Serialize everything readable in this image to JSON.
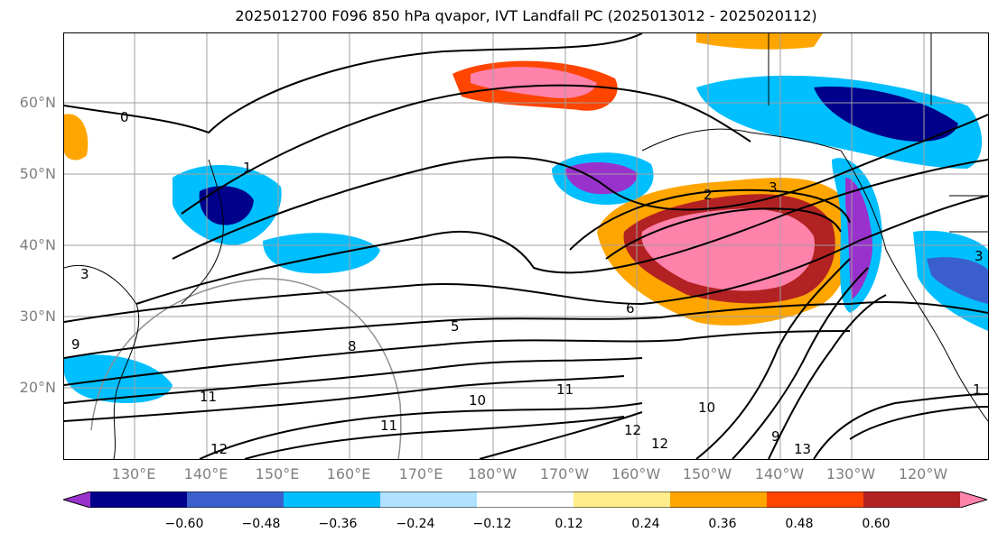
{
  "title": "2025012700 F096 850 hPa qvapor, IVT Landfall PC (2025013012 - 2025020112)",
  "lat_labels": [
    "60°N",
    "50°N",
    "40°N",
    "30°N",
    "20°N"
  ],
  "lon_labels": [
    "130°E",
    "140°E",
    "150°E",
    "160°E",
    "170°E",
    "180°W",
    "170°W",
    "160°W",
    "150°W",
    "140°W",
    "130°W",
    "120°W"
  ],
  "contour_labels": [
    "0",
    "1",
    "2",
    "3",
    "3",
    "3",
    "5",
    "6",
    "8",
    "9",
    "9",
    "10",
    "10",
    "11",
    "11",
    "11",
    "12",
    "12",
    "12",
    "13",
    "1"
  ],
  "colorbar": {
    "ticks": [
      "−0.60",
      "−0.48",
      "−0.36",
      "−0.24",
      "−0.12",
      "0.12",
      "0.24",
      "0.36",
      "0.48",
      "0.60"
    ],
    "colors": [
      "#9932cc",
      "#00008b",
      "#3a5fcd",
      "#00bfff",
      "#b0e2ff",
      "#ffffff",
      "#ffec8b",
      "#ffa500",
      "#ff4500",
      "#b22222",
      "#ff82ab"
    ]
  }
}
